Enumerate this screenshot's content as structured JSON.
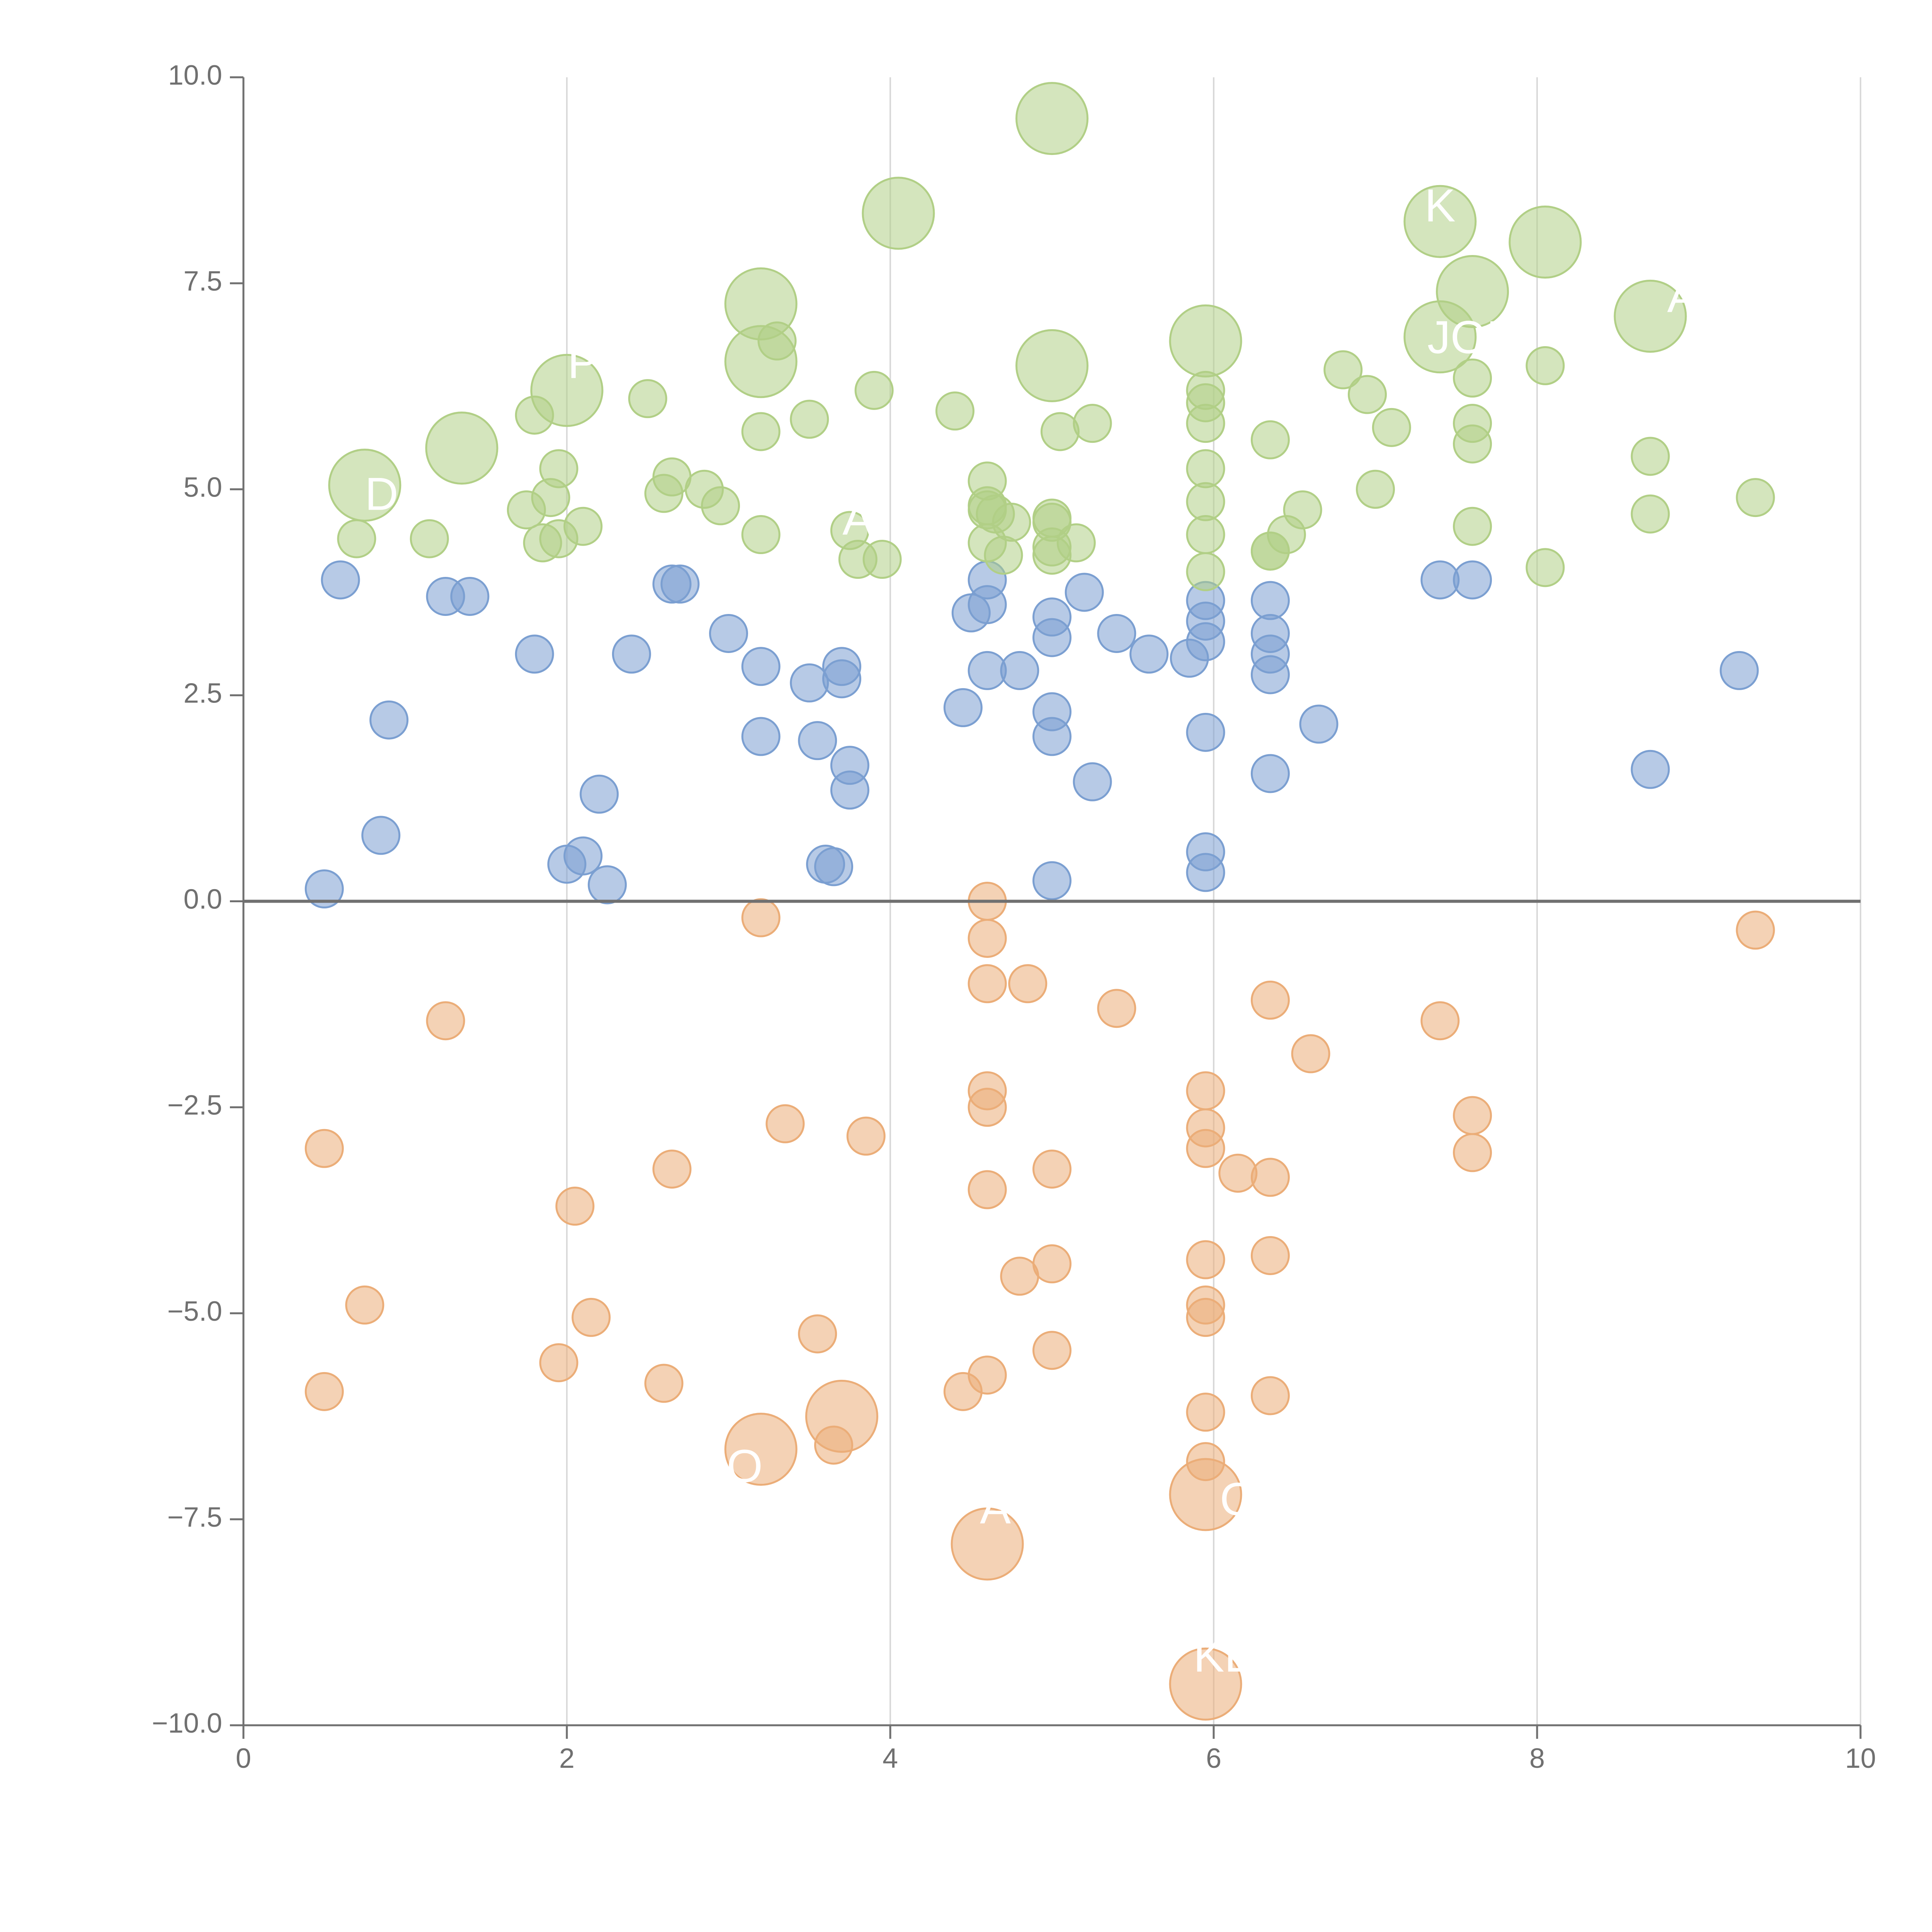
{
  "chart_data": {
    "type": "scatter",
    "title": "",
    "xlabel": "",
    "ylabel": "",
    "xlim": [
      0,
      10
    ],
    "ylim": [
      -10,
      10
    ],
    "x_ticks": [
      0,
      2,
      4,
      6,
      8,
      10
    ],
    "x_tick_labels": [
      "0",
      "2",
      "4",
      "6",
      "8",
      "10"
    ],
    "y_ticks": [
      10,
      7.5,
      5,
      2.5,
      0,
      -2.5,
      -5,
      -7.5,
      -10
    ],
    "y_tick_labels": [
      "10.0",
      "7.5",
      "5.0",
      "2.5",
      "0.0",
      "−2.5",
      "−5.0",
      "−7.5",
      "−10.0"
    ],
    "grid": "vertical",
    "zero_line": true,
    "colors": {
      "blue": "#7b9fd1",
      "green": "#b1cf86",
      "orange": "#ebad78",
      "axis": "#707070",
      "grid": "#d9d9d9"
    },
    "series": [
      {
        "name": "blue",
        "color": "#7b9fd1",
        "points": [
          [
            0.6,
            3.9
          ],
          [
            0.5,
            0.15
          ],
          [
            0.9,
            2.2
          ],
          [
            0.85,
            0.8
          ],
          [
            1.25,
            3.7
          ],
          [
            1.4,
            3.7
          ],
          [
            1.8,
            3.0
          ],
          [
            2.0,
            0.45
          ],
          [
            2.1,
            0.55
          ],
          [
            2.2,
            1.3
          ],
          [
            2.25,
            0.2
          ],
          [
            2.4,
            3.0
          ],
          [
            2.65,
            3.85
          ],
          [
            2.7,
            3.85
          ],
          [
            3.0,
            3.25
          ],
          [
            3.2,
            2.85
          ],
          [
            3.2,
            2.0
          ],
          [
            3.5,
            2.65
          ],
          [
            3.55,
            1.95
          ],
          [
            3.6,
            0.45
          ],
          [
            3.65,
            0.42
          ],
          [
            3.7,
            2.85
          ],
          [
            3.7,
            2.7
          ],
          [
            3.75,
            1.65
          ],
          [
            3.75,
            1.35
          ],
          [
            4.45,
            2.35
          ],
          [
            4.5,
            3.5
          ],
          [
            4.6,
            3.9
          ],
          [
            4.6,
            3.6
          ],
          [
            4.6,
            2.8
          ],
          [
            4.8,
            2.8
          ],
          [
            5.0,
            3.45
          ],
          [
            5.0,
            3.2
          ],
          [
            5.0,
            2.3
          ],
          [
            5.0,
            2.0
          ],
          [
            5.0,
            0.25
          ],
          [
            5.2,
            3.75
          ],
          [
            5.25,
            1.45
          ],
          [
            5.4,
            3.25
          ],
          [
            5.6,
            3.0
          ],
          [
            5.85,
            2.95
          ],
          [
            5.95,
            3.65
          ],
          [
            5.95,
            3.4
          ],
          [
            5.95,
            3.15
          ],
          [
            5.95,
            2.05
          ],
          [
            5.95,
            0.6
          ],
          [
            5.95,
            0.35
          ],
          [
            6.35,
            3.65
          ],
          [
            6.35,
            3.25
          ],
          [
            6.35,
            3.0
          ],
          [
            6.35,
            2.75
          ],
          [
            6.35,
            1.55
          ],
          [
            6.65,
            2.15
          ],
          [
            7.4,
            3.9
          ],
          [
            7.6,
            3.9
          ],
          [
            8.7,
            1.6
          ],
          [
            9.25,
            2.8
          ]
        ]
      },
      {
        "name": "green",
        "color": "#b1cf86",
        "points": [
          [
            0.7,
            4.4
          ],
          [
            1.15,
            4.4
          ],
          [
            1.75,
            4.75
          ],
          [
            1.8,
            5.9
          ],
          [
            1.85,
            4.35
          ],
          [
            1.9,
            4.9
          ],
          [
            1.95,
            5.25
          ],
          [
            1.95,
            4.4
          ],
          [
            2.1,
            4.55
          ],
          [
            2.5,
            6.1
          ],
          [
            2.6,
            4.95
          ],
          [
            2.65,
            5.15
          ],
          [
            2.85,
            5.0
          ],
          [
            2.95,
            4.8
          ],
          [
            3.2,
            5.7
          ],
          [
            3.2,
            4.45
          ],
          [
            3.3,
            6.8
          ],
          [
            3.5,
            5.85
          ],
          [
            3.75,
            4.5
          ],
          [
            3.8,
            4.15
          ],
          [
            3.9,
            6.2
          ],
          [
            3.95,
            4.15
          ],
          [
            4.4,
            5.95
          ],
          [
            4.6,
            5.1
          ],
          [
            4.6,
            4.8
          ],
          [
            4.6,
            4.75
          ],
          [
            4.6,
            4.35
          ],
          [
            4.65,
            4.7
          ],
          [
            4.7,
            4.2
          ],
          [
            4.75,
            4.6
          ],
          [
            5.0,
            4.65
          ],
          [
            5.0,
            4.6
          ],
          [
            5.0,
            4.3
          ],
          [
            5.0,
            4.2
          ],
          [
            5.05,
            5.7
          ],
          [
            5.15,
            4.35
          ],
          [
            5.25,
            5.8
          ],
          [
            5.95,
            6.2
          ],
          [
            5.95,
            6.05
          ],
          [
            5.95,
            5.8
          ],
          [
            5.95,
            5.25
          ],
          [
            5.95,
            4.85
          ],
          [
            5.95,
            4.45
          ],
          [
            5.95,
            4.0
          ],
          [
            6.35,
            5.6
          ],
          [
            6.35,
            4.25
          ],
          [
            6.35,
            4.25
          ],
          [
            6.45,
            4.45
          ],
          [
            6.55,
            4.75
          ],
          [
            6.8,
            6.45
          ],
          [
            6.95,
            6.15
          ],
          [
            7.0,
            5.0
          ],
          [
            7.1,
            5.75
          ],
          [
            7.6,
            6.35
          ],
          [
            7.6,
            5.8
          ],
          [
            7.6,
            5.55
          ],
          [
            7.6,
            4.55
          ],
          [
            8.05,
            6.5
          ],
          [
            8.05,
            4.05
          ],
          [
            8.7,
            5.4
          ],
          [
            8.7,
            4.7
          ],
          [
            9.35,
            4.9
          ]
        ],
        "large_points": [
          [
            0.75,
            5.05
          ],
          [
            1.35,
            5.5
          ],
          [
            2.0,
            6.2
          ],
          [
            3.2,
            7.25
          ],
          [
            3.2,
            6.55
          ],
          [
            4.05,
            8.35
          ],
          [
            5.0,
            9.5
          ],
          [
            5.0,
            6.5
          ],
          [
            5.95,
            6.8
          ],
          [
            7.4,
            8.25
          ],
          [
            7.4,
            6.85
          ],
          [
            7.6,
            7.4
          ],
          [
            8.05,
            8.0
          ],
          [
            8.7,
            7.1
          ]
        ]
      },
      {
        "name": "orange",
        "color": "#ebad78",
        "points": [
          [
            0.5,
            -3.0
          ],
          [
            0.5,
            -5.95
          ],
          [
            0.75,
            -4.9
          ],
          [
            1.25,
            -1.45
          ],
          [
            1.95,
            -5.6
          ],
          [
            2.05,
            -3.7
          ],
          [
            2.15,
            -5.05
          ],
          [
            2.6,
            -5.85
          ],
          [
            2.65,
            -3.25
          ],
          [
            3.2,
            -0.2
          ],
          [
            3.35,
            -2.7
          ],
          [
            3.55,
            -5.25
          ],
          [
            3.65,
            -6.6
          ],
          [
            3.85,
            -2.85
          ],
          [
            4.45,
            -5.95
          ],
          [
            4.6,
            0.0
          ],
          [
            4.6,
            -0.45
          ],
          [
            4.6,
            -1.0
          ],
          [
            4.6,
            -2.3
          ],
          [
            4.6,
            -2.5
          ],
          [
            4.6,
            -3.5
          ],
          [
            4.6,
            -5.75
          ],
          [
            4.8,
            -4.55
          ],
          [
            4.85,
            -1.0
          ],
          [
            5.0,
            -3.25
          ],
          [
            5.0,
            -4.4
          ],
          [
            5.0,
            -5.45
          ],
          [
            5.4,
            -1.3
          ],
          [
            5.95,
            -2.3
          ],
          [
            5.95,
            -2.75
          ],
          [
            5.95,
            -3.0
          ],
          [
            5.95,
            -4.35
          ],
          [
            5.95,
            -4.9
          ],
          [
            5.95,
            -5.05
          ],
          [
            5.95,
            -6.2
          ],
          [
            5.95,
            -6.8
          ],
          [
            6.15,
            -3.3
          ],
          [
            6.35,
            -1.2
          ],
          [
            6.35,
            -3.35
          ],
          [
            6.35,
            -4.3
          ],
          [
            6.35,
            -6.0
          ],
          [
            6.6,
            -1.85
          ],
          [
            7.4,
            -1.45
          ],
          [
            7.6,
            -2.6
          ],
          [
            7.6,
            -3.05
          ],
          [
            9.35,
            -0.35
          ]
        ],
        "large_points": [
          [
            3.2,
            -6.65
          ],
          [
            3.7,
            -6.25
          ],
          [
            4.6,
            -7.8
          ],
          [
            5.95,
            -7.2
          ],
          [
            5.95,
            -9.5
          ]
        ]
      }
    ],
    "annotations": [
      {
        "text": "DE",
        "x": 0.95,
        "y": 4.9
      },
      {
        "text": "P",
        "x": 2.1,
        "y": 6.5
      },
      {
        "text": "A",
        "x": 3.8,
        "y": 4.6
      },
      {
        "text": "K",
        "x": 7.4,
        "y": 8.4
      },
      {
        "text": "JOE",
        "x": 7.6,
        "y": 6.8
      },
      {
        "text": "A",
        "x": 8.9,
        "y": 7.3
      },
      {
        "text": "O",
        "x": 3.1,
        "y": -6.9
      },
      {
        "text": "A",
        "x": 4.65,
        "y": -7.4
      },
      {
        "text": "O",
        "x": 6.15,
        "y": -7.3
      },
      {
        "text": "KL",
        "x": 6.05,
        "y": -9.2
      }
    ]
  }
}
